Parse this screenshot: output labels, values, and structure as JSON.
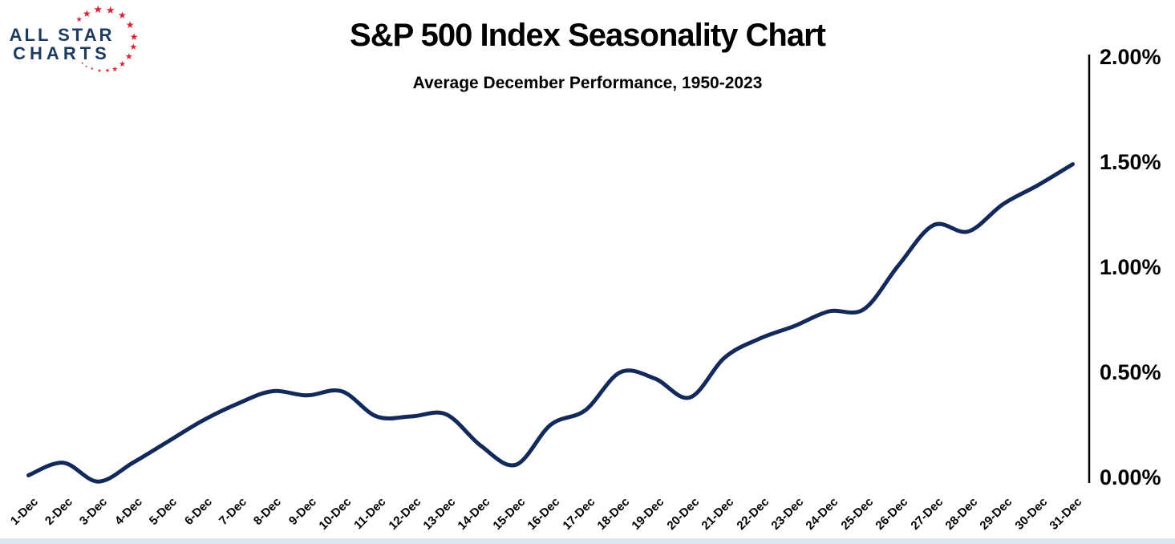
{
  "logo": {
    "line1": "ALL STAR",
    "line2": "CHARTS",
    "text_color": "#1e3a5f",
    "star_color": "#da2032"
  },
  "header": {
    "title": "S&P 500 Index Seasonality Chart",
    "subtitle": "Average December Performance, 1950-2023"
  },
  "chart_data": {
    "type": "line",
    "title": "S&P 500 Index Seasonality Chart",
    "subtitle": "Average December Performance, 1950-2023",
    "categories": [
      "1-Dec",
      "2-Dec",
      "3-Dec",
      "4-Dec",
      "5-Dec",
      "6-Dec",
      "7-Dec",
      "8-Dec",
      "9-Dec",
      "10-Dec",
      "11-Dec",
      "12-Dec",
      "13-Dec",
      "14-Dec",
      "15-Dec",
      "16-Dec",
      "17-Dec",
      "18-Dec",
      "19-Dec",
      "20-Dec",
      "21-Dec",
      "22-Dec",
      "23-Dec",
      "24-Dec",
      "25-Dec",
      "26-Dec",
      "27-Dec",
      "28-Dec",
      "29-Dec",
      "30-Dec",
      "31-Dec"
    ],
    "series": [
      {
        "name": "Average December Performance 1950-2023 (%)",
        "values": [
          0.01,
          0.07,
          -0.02,
          0.07,
          0.17,
          0.27,
          0.35,
          0.41,
          0.39,
          0.41,
          0.29,
          0.29,
          0.3,
          0.15,
          0.06,
          0.25,
          0.32,
          0.5,
          0.47,
          0.38,
          0.57,
          0.66,
          0.72,
          0.79,
          0.8,
          1.01,
          1.2,
          1.17,
          1.3,
          1.39,
          1.49
        ]
      }
    ],
    "xlabel": "",
    "ylabel": "",
    "y_axis": {
      "side": "right",
      "tick_labels": [
        "2.00%",
        "1.50%",
        "1.00%",
        "0.50%",
        "0.00%"
      ],
      "tick_values": [
        2.0,
        1.5,
        1.0,
        0.5,
        0.0
      ],
      "min": 0.0,
      "max": 2.0,
      "format": "percent"
    },
    "grid": false,
    "legend": "none",
    "line_color": "#12295a",
    "axis_color": "#000000"
  }
}
